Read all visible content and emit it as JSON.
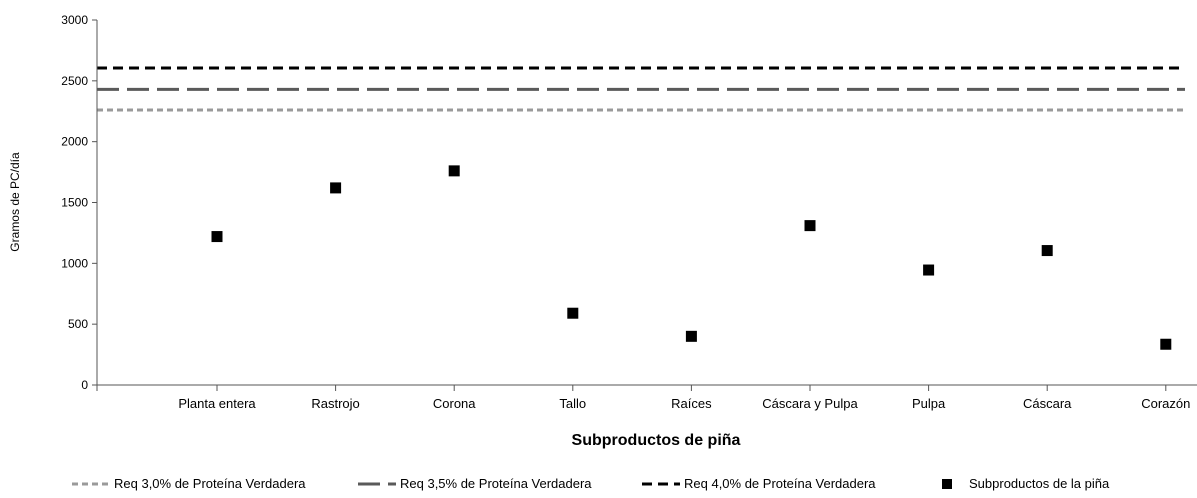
{
  "chart_data": {
    "type": "scatter",
    "xlabel": "Subproductos de piña",
    "ylabel": "Gramos de PC/día",
    "ylim": [
      0,
      3000
    ],
    "yticks": [
      0,
      500,
      1000,
      1500,
      2000,
      2500,
      3000
    ],
    "grid": false,
    "legend_position": "bottom",
    "categories": [
      "Planta entera",
      "Rastrojo",
      "Corona",
      "Tallo",
      "Raíces",
      "Cáscara y Pulpa",
      "Pulpa",
      "Cáscara",
      "Corazón"
    ],
    "series": [
      {
        "name": "Subproductos de la piña",
        "kind": "points",
        "color": "#000000",
        "marker": "square",
        "values": [
          1220,
          1620,
          1760,
          590,
          400,
          1310,
          945,
          1105,
          335
        ]
      }
    ],
    "reference_lines": [
      {
        "name": "Req 3,0% de Proteína Verdadera",
        "value": 2260,
        "color": "#9a9a9a",
        "style": "short-dash"
      },
      {
        "name": "Req 3,5% de Proteína Verdadera",
        "value": 2430,
        "color": "#5a5a5a",
        "style": "long-dash"
      },
      {
        "name": "Req 4,0% de Proteína Verdadera",
        "value": 2605,
        "color": "#000000",
        "style": "dash"
      }
    ]
  }
}
